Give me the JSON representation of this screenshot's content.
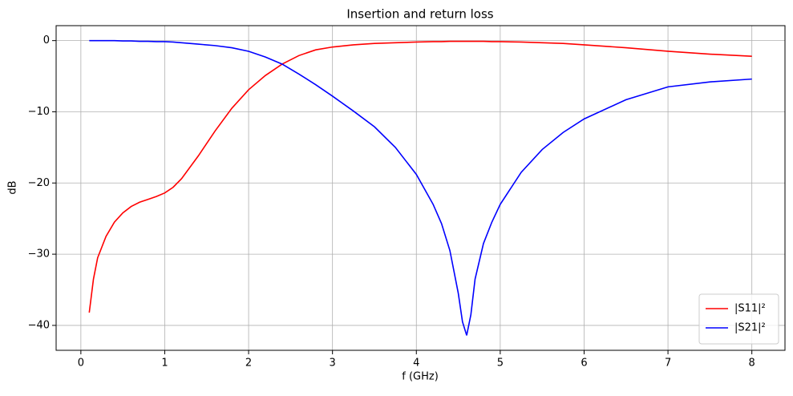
{
  "chart_data": {
    "type": "line",
    "title": "Insertion and return loss",
    "xlabel": "f (GHz)",
    "ylabel": "dB",
    "x": [
      0.1,
      0.15,
      0.2,
      0.3,
      0.4,
      0.5,
      0.6,
      0.7,
      0.8,
      0.9,
      1.0,
      1.1,
      1.2,
      1.4,
      1.6,
      1.8,
      2.0,
      2.2,
      2.4,
      2.6,
      2.8,
      3.0,
      3.25,
      3.5,
      3.75,
      4.0,
      4.2,
      4.3,
      4.4,
      4.5,
      4.55,
      4.6,
      4.65,
      4.7,
      4.8,
      4.9,
      5.0,
      5.25,
      5.5,
      5.75,
      6.0,
      6.5,
      7.0,
      7.5,
      8.0
    ],
    "series": [
      {
        "name": "|S11|²",
        "color": "#ff0000",
        "values": [
          -38.2,
          -33.5,
          -30.5,
          -27.5,
          -25.5,
          -24.2,
          -23.3,
          -22.7,
          -22.3,
          -21.9,
          -21.4,
          -20.6,
          -19.4,
          -16.2,
          -12.7,
          -9.5,
          -6.9,
          -4.9,
          -3.3,
          -2.1,
          -1.3,
          -0.9,
          -0.6,
          -0.4,
          -0.3,
          -0.2,
          -0.15,
          -0.15,
          -0.1,
          -0.1,
          -0.1,
          -0.1,
          -0.1,
          -0.1,
          -0.1,
          -0.15,
          -0.15,
          -0.2,
          -0.3,
          -0.4,
          -0.6,
          -1.0,
          -1.5,
          -1.9,
          -2.2
        ]
      },
      {
        "name": "|S21|²",
        "color": "#0000ff",
        "values": [
          0,
          0,
          0,
          0,
          0,
          -0.05,
          -0.05,
          -0.1,
          -0.1,
          -0.15,
          -0.15,
          -0.2,
          -0.3,
          -0.5,
          -0.7,
          -1.0,
          -1.5,
          -2.3,
          -3.3,
          -4.7,
          -6.2,
          -7.8,
          -9.9,
          -12.1,
          -15.0,
          -18.8,
          -23.0,
          -25.7,
          -29.5,
          -35.5,
          -39.5,
          -41.4,
          -38.5,
          -33.5,
          -28.5,
          -25.5,
          -23.0,
          -18.5,
          -15.3,
          -12.9,
          -11.0,
          -8.3,
          -6.5,
          -5.8,
          -5.4
        ]
      }
    ],
    "xlim": [
      -0.295,
      8.395
    ],
    "ylim": [
      -43.5,
      2.1
    ],
    "xticks": [
      0,
      1,
      2,
      3,
      4,
      5,
      6,
      7,
      8
    ],
    "yticks": [
      0,
      {
        "value": -10,
        "label": "−10"
      },
      {
        "value": -20,
        "label": "−20"
      },
      {
        "value": -30,
        "label": "−30"
      },
      {
        "value": -40,
        "label": "−40"
      }
    ],
    "grid": true,
    "legend": "lower right"
  }
}
